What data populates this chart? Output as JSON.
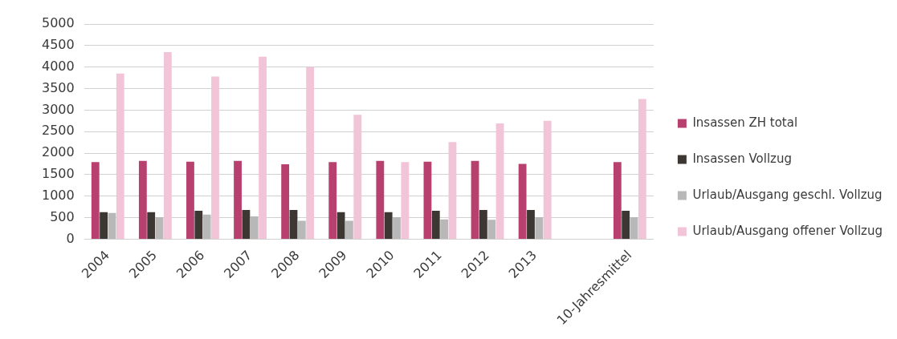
{
  "chart_data": {
    "type": "bar",
    "categories": [
      "2004",
      "2005",
      "2006",
      "2007",
      "2008",
      "2009",
      "2010",
      "2011",
      "2012",
      "2013",
      null,
      "10-Jahresmittel"
    ],
    "series": [
      {
        "name": "Insassen ZH total",
        "color": "#b8406e",
        "values": [
          1790,
          1820,
          1800,
          1820,
          1740,
          1790,
          1820,
          1800,
          1820,
          1750,
          null,
          1790
        ]
      },
      {
        "name": "Insassen Vollzug",
        "color": "#3d3733",
        "values": [
          630,
          630,
          660,
          680,
          680,
          630,
          630,
          660,
          680,
          680,
          null,
          660
        ]
      },
      {
        "name": "Urlaub/Ausgang geschl. Vollzug",
        "color": "#b8b8b8",
        "values": [
          610,
          510,
          570,
          530,
          430,
          430,
          510,
          460,
          450,
          510,
          null,
          510
        ]
      },
      {
        "name": "Urlaub/Ausgang offener Vollzug",
        "color": "#f2c4d8",
        "values": [
          3850,
          4350,
          3780,
          4240,
          4000,
          2890,
          1790,
          2260,
          2690,
          2750,
          null,
          3260
        ]
      }
    ],
    "ylim": [
      0,
      5000
    ],
    "yticks": [
      0,
      500,
      1000,
      1500,
      2000,
      2500,
      3000,
      3500,
      4000,
      4500,
      5000
    ],
    "grid": "y",
    "legend": "right"
  }
}
